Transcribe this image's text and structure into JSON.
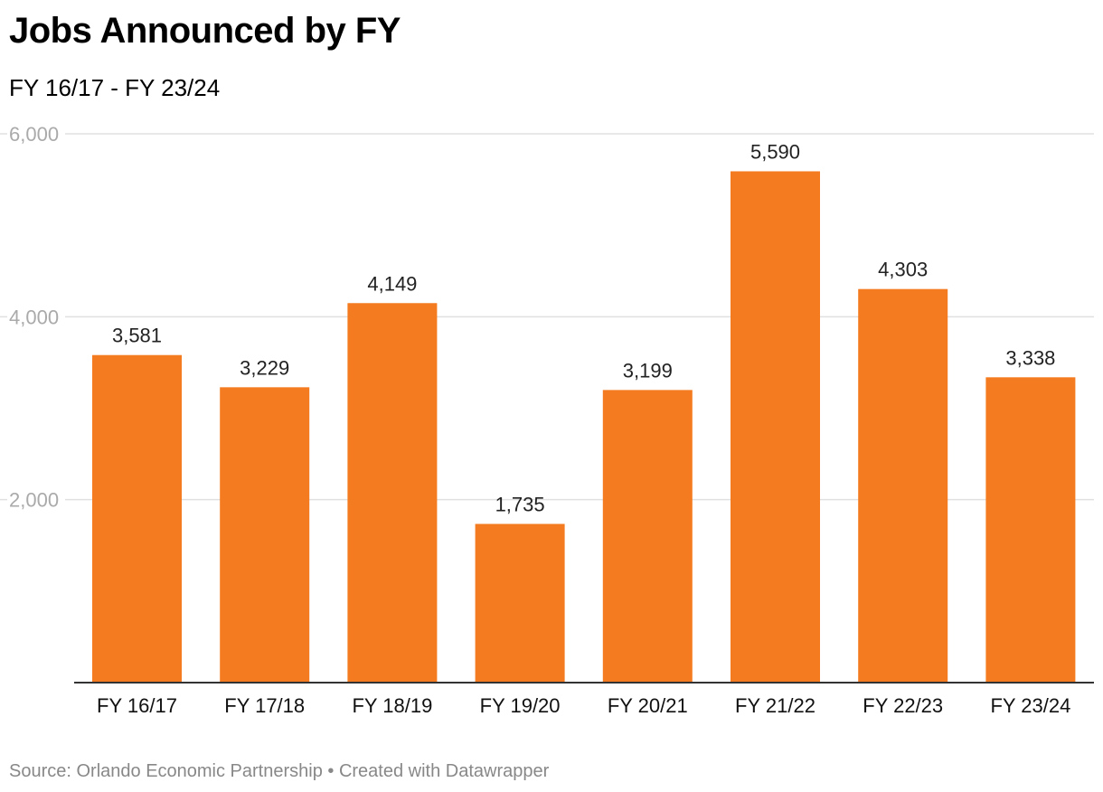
{
  "header": {
    "title": "Jobs Announced by FY",
    "subtitle": "FY 16/17 - FY 23/24"
  },
  "footer": {
    "source": "Source: Orlando Economic Partnership • Created with Datawrapper"
  },
  "colors": {
    "bar": "#f47b20",
    "grid": "#e0e0e0",
    "axis": "#333333",
    "tick_label": "#aaaaaa"
  },
  "chart_data": {
    "type": "bar",
    "title": "Jobs Announced by FY",
    "subtitle": "FY 16/17 - FY 23/24",
    "xlabel": "",
    "ylabel": "",
    "categories": [
      "FY 16/17",
      "FY 17/18",
      "FY 18/19",
      "FY 19/20",
      "FY 20/21",
      "FY 21/22",
      "FY 22/23",
      "FY 23/24"
    ],
    "values": [
      3581,
      3229,
      4149,
      1735,
      3199,
      5590,
      4303,
      3338
    ],
    "value_labels": [
      "3,581",
      "3,229",
      "4,149",
      "1,735",
      "3,199",
      "5,590",
      "4,303",
      "3,338"
    ],
    "y_ticks": [
      2000,
      4000,
      6000
    ],
    "y_tick_labels": [
      "2,000",
      "4,000",
      "6,000"
    ],
    "ylim": [
      0,
      6000
    ],
    "grid": true,
    "legend": "none"
  }
}
